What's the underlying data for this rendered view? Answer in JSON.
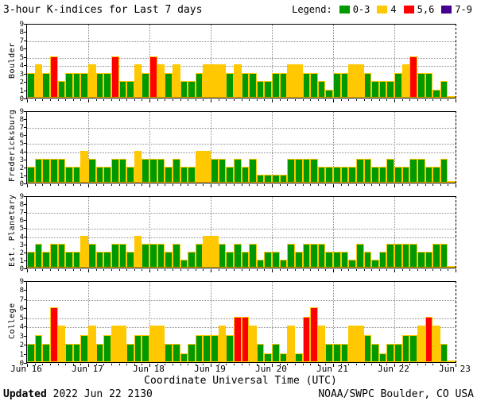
{
  "title": "3-hour K-indices for Last 7 days",
  "legend": {
    "label": "Legend:",
    "items": [
      {
        "label": "0-3",
        "color": "#009900"
      },
      {
        "label": "4",
        "color": "#FFC800"
      },
      {
        "label": "5,6",
        "color": "#FF0000"
      },
      {
        "label": "7-9",
        "color": "#44008C"
      }
    ]
  },
  "xlabel": "Coordinate Universal Time (UTC)",
  "x_ticks": [
    "Jun 16",
    "Jun 17",
    "Jun 18",
    "Jun 19",
    "Jun 20",
    "Jun 21",
    "Jun 22",
    "Jun 23"
  ],
  "footer": {
    "updated_label": "Updated",
    "updated_value": " 2022 Jun 22 2130",
    "source": "NOAA/SWPC Boulder, CO USA"
  },
  "chart_data": {
    "type": "bar",
    "subtype": "k-index-stacked-panels",
    "ylim": [
      0,
      9
    ],
    "y_ticks": [
      0,
      1,
      2,
      3,
      4,
      5,
      6,
      7,
      8,
      9
    ],
    "y_gridlines": [
      4,
      5,
      7
    ],
    "bars_per_day": 8,
    "days": [
      "Jun 16",
      "Jun 17",
      "Jun 18",
      "Jun 19",
      "Jun 20",
      "Jun 21",
      "Jun 22"
    ],
    "color_rule": [
      {
        "range": "0-3",
        "color": "#009900"
      },
      {
        "range": "4",
        "color": "#FFC800"
      },
      {
        "range": "5-6",
        "color": "#FF0000"
      },
      {
        "range": "7-9",
        "color": "#44008C"
      }
    ],
    "bar_outline_color": "#FFC800",
    "panels": [
      {
        "station": "Boulder",
        "values": [
          3,
          4,
          3,
          5,
          2,
          3,
          3,
          3,
          4,
          3,
          3,
          5,
          2,
          2,
          4,
          3,
          5,
          4,
          3,
          4,
          2,
          2,
          3,
          4,
          4,
          4,
          3,
          4,
          3,
          3,
          2,
          2,
          3,
          3,
          4,
          4,
          3,
          3,
          2,
          1,
          3,
          3,
          4,
          4,
          3,
          2,
          2,
          2,
          3,
          4,
          5,
          3,
          3,
          1,
          2,
          0
        ]
      },
      {
        "station": "Fredericksburg",
        "values": [
          2,
          3,
          3,
          3,
          3,
          2,
          2,
          4,
          3,
          2,
          2,
          3,
          3,
          2,
          4,
          3,
          3,
          3,
          2,
          3,
          2,
          2,
          4,
          4,
          3,
          3,
          2,
          3,
          2,
          3,
          1,
          1,
          1,
          1,
          3,
          3,
          3,
          3,
          2,
          2,
          2,
          2,
          2,
          3,
          3,
          2,
          2,
          3,
          2,
          2,
          3,
          3,
          2,
          2,
          3,
          0
        ]
      },
      {
        "station": "Est. Planetary",
        "values": [
          2,
          3,
          2,
          3,
          3,
          2,
          2,
          4,
          3,
          2,
          2,
          3,
          3,
          2,
          4,
          3,
          3,
          3,
          2,
          3,
          1,
          2,
          3,
          4,
          4,
          3,
          2,
          3,
          2,
          3,
          1,
          2,
          2,
          1,
          3,
          2,
          3,
          3,
          3,
          2,
          2,
          2,
          1,
          3,
          2,
          1,
          2,
          3,
          3,
          3,
          3,
          2,
          2,
          3,
          3,
          0
        ]
      },
      {
        "station": "College",
        "values": [
          2,
          3,
          2,
          6,
          4,
          2,
          2,
          3,
          4,
          2,
          3,
          4,
          4,
          2,
          3,
          3,
          4,
          4,
          2,
          2,
          1,
          2,
          3,
          3,
          3,
          4,
          3,
          5,
          5,
          4,
          2,
          1,
          2,
          1,
          4,
          1,
          5,
          6,
          4,
          2,
          2,
          2,
          4,
          4,
          3,
          2,
          1,
          2,
          2,
          3,
          3,
          4,
          5,
          4,
          2,
          0
        ]
      }
    ]
  }
}
